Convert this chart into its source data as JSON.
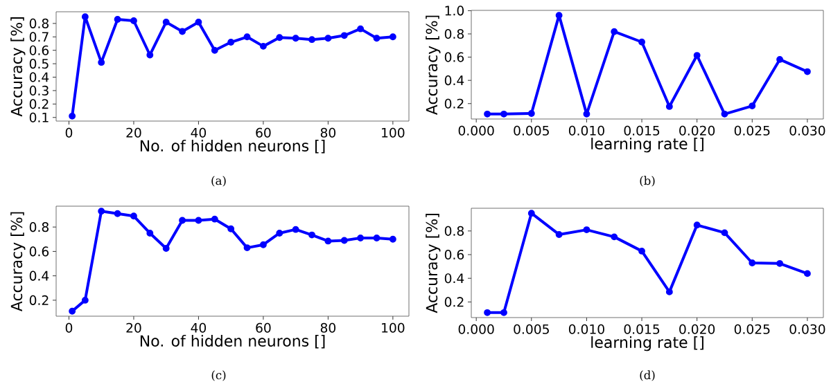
{
  "chart_data": [
    {
      "type": "line",
      "xlabel": "No. of hidden neurons []",
      "ylabel": "Accuracy [%]",
      "color": "#0000ff",
      "marker": "circle",
      "line_style": "solid",
      "x": [
        1,
        5,
        10,
        15,
        20,
        25,
        30,
        35,
        40,
        45,
        50,
        55,
        60,
        65,
        70,
        75,
        80,
        85,
        90,
        95,
        100
      ],
      "values": [
        0.11,
        0.85,
        0.51,
        0.83,
        0.82,
        0.565,
        0.81,
        0.74,
        0.81,
        0.6,
        0.66,
        0.7,
        0.63,
        0.695,
        0.69,
        0.68,
        0.69,
        0.71,
        0.76,
        0.69,
        0.7
      ],
      "xlim": [
        -3.95,
        104.95
      ],
      "ylim": [
        0.073,
        0.887
      ],
      "xticks": [
        0,
        20,
        40,
        60,
        80,
        100
      ],
      "yticks": [
        0.1,
        0.2,
        0.3,
        0.4,
        0.5,
        0.6,
        0.7,
        0.8
      ],
      "annotations": [
        "(a)"
      ]
    },
    {
      "type": "line",
      "xlabel": "learning rate []",
      "ylabel": "Accuracy [%]",
      "color": "#0000ff",
      "marker": "circle",
      "line_style": "solid",
      "x": [
        0.001,
        0.0025,
        0.005,
        0.0075,
        0.01,
        0.0125,
        0.015,
        0.0175,
        0.02,
        0.0225,
        0.025,
        0.0275,
        0.03
      ],
      "values": [
        0.11,
        0.11,
        0.115,
        0.96,
        0.11,
        0.82,
        0.73,
        0.175,
        0.615,
        0.11,
        0.18,
        0.58,
        0.475
      ],
      "xlim": [
        -0.00045,
        0.03145
      ],
      "ylim": [
        0.0675,
        1.0025
      ],
      "xticks": [
        {
          "value": 0,
          "label": "0.000"
        },
        {
          "value": 0.005,
          "label": "0.005"
        },
        {
          "value": 0.01,
          "label": "0.010"
        },
        {
          "value": 0.015,
          "label": "0.015"
        },
        {
          "value": 0.02,
          "label": "0.020"
        },
        {
          "value": 0.025,
          "label": "0.025"
        },
        {
          "value": 0.03,
          "label": "0.030"
        }
      ],
      "yticks": [
        0.2,
        0.4,
        0.6,
        0.8,
        {
          "value": 1,
          "label": "1.0"
        }
      ],
      "annotations": [
        "(b)"
      ]
    },
    {
      "type": "line",
      "xlabel": "No. of hidden neurons []",
      "ylabel": "Accuracy [%]",
      "color": "#0000ff",
      "marker": "circle",
      "line_style": "solid",
      "x": [
        1,
        5,
        10,
        15,
        20,
        25,
        30,
        35,
        40,
        45,
        50,
        55,
        60,
        65,
        70,
        75,
        80,
        85,
        90,
        95,
        100
      ],
      "values": [
        0.11,
        0.2,
        0.93,
        0.91,
        0.89,
        0.75,
        0.625,
        0.855,
        0.855,
        0.865,
        0.785,
        0.63,
        0.655,
        0.75,
        0.78,
        0.735,
        0.685,
        0.69,
        0.71,
        0.71,
        0.7
      ],
      "xlim": [
        -3.95,
        104.95
      ],
      "ylim": [
        0.069,
        0.971
      ],
      "xticks": [
        0,
        20,
        40,
        60,
        80,
        100
      ],
      "yticks": [
        0.2,
        0.4,
        0.6,
        0.8
      ],
      "annotations": [
        "(c)"
      ]
    },
    {
      "type": "line",
      "xlabel": "learning rate []",
      "ylabel": "Accuracy [%]",
      "color": "#0000ff",
      "marker": "circle",
      "line_style": "solid",
      "x": [
        0.001,
        0.0025,
        0.005,
        0.0075,
        0.01,
        0.0125,
        0.015,
        0.0175,
        0.02,
        0.0225,
        0.025,
        0.0275,
        0.03
      ],
      "values": [
        0.11,
        0.11,
        0.95,
        0.77,
        0.81,
        0.75,
        0.63,
        0.285,
        0.85,
        0.785,
        0.53,
        0.525,
        0.44
      ],
      "xlim": [
        -0.00045,
        0.03145
      ],
      "ylim": [
        0.068,
        0.992
      ],
      "xticks": [
        {
          "value": 0,
          "label": "0.000"
        },
        {
          "value": 0.005,
          "label": "0.005"
        },
        {
          "value": 0.01,
          "label": "0.010"
        },
        {
          "value": 0.015,
          "label": "0.015"
        },
        {
          "value": 0.02,
          "label": "0.020"
        },
        {
          "value": 0.025,
          "label": "0.025"
        },
        {
          "value": 0.03,
          "label": "0.030"
        }
      ],
      "yticks": [
        0.2,
        0.4,
        0.6,
        0.8
      ],
      "annotations": [
        "(d)"
      ]
    }
  ]
}
